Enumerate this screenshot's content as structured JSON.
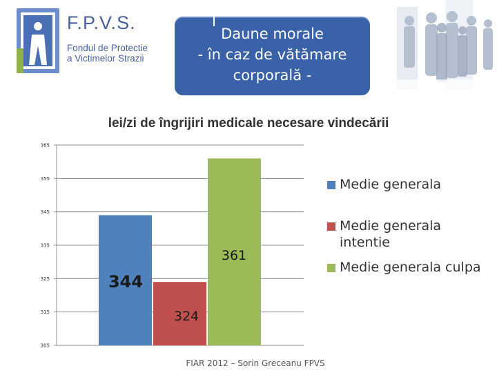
{
  "logo": {
    "title": "F.P.V.S.",
    "subtitle_line1": "Fondul de Protectie",
    "subtitle_line2": "a Victimelor Strazii"
  },
  "header": {
    "text": "Daune morale\n- în caz de vătămare\ncorporală -",
    "color": "#3a62a8"
  },
  "chart_data": {
    "type": "bar",
    "title": "lei/zi de îngrijiri medicale necesare vindecării",
    "ylim": [
      305,
      365
    ],
    "yticks": [
      305,
      315,
      325,
      335,
      345,
      355,
      365
    ],
    "grid": true,
    "legend_position": "right",
    "series": [
      {
        "name": "Medie generala",
        "value": 344,
        "label": "344",
        "color": "#4f81bd"
      },
      {
        "name": "Medie generala intentie",
        "value": 324,
        "label": "324",
        "color": "#c0504d"
      },
      {
        "name": "Medie generala culpa",
        "value": 361,
        "label": "361",
        "color": "#9bbb59"
      }
    ]
  },
  "footer": {
    "text": "FIAR 2012 – Sorin Greceanu FPVS"
  }
}
